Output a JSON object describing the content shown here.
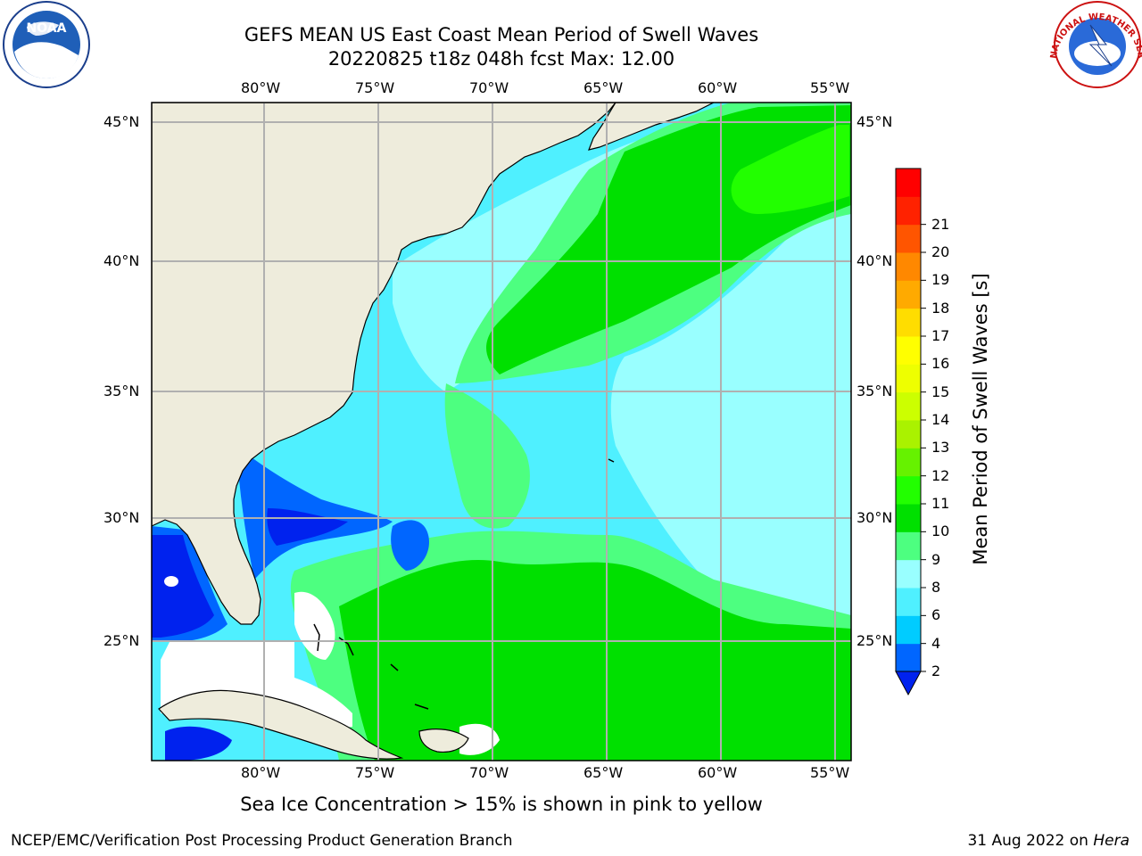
{
  "title": {
    "line1": "GEFS MEAN US East Coast Mean Period of Swell Waves",
    "line2": "20220825 t18z 048h fcst   Max: 12.00"
  },
  "map": {
    "lon_range": [
      -85,
      -54
    ],
    "lat_range": [
      20.5,
      46.2
    ],
    "lon_ticks": [
      "80°W",
      "75°W",
      "70°W",
      "65°W",
      "60°W",
      "55°W"
    ],
    "lat_ticks": [
      "45°N",
      "40°N",
      "35°N",
      "30°N",
      "25°N"
    ],
    "gridlines": true,
    "land_color": "#eeecdc",
    "grid_color": "#b0b0b0"
  },
  "colorbar": {
    "label": "Mean Period of Swell Waves [s]",
    "ticks": [
      "2",
      "4",
      "6",
      "8",
      "9",
      "10",
      "11",
      "12",
      "13",
      "14",
      "15",
      "16",
      "17",
      "18",
      "19",
      "20",
      "21"
    ],
    "colors": [
      "#0066ff",
      "#00ccff",
      "#4ff0ff",
      "#99ffff",
      "#4dff80",
      "#00e000",
      "#22ff00",
      "#66f200",
      "#aaf200",
      "#ccff00",
      "#eeff00",
      "#ffff00",
      "#ffdd00",
      "#ffaa00",
      "#ff8800",
      "#ff5500",
      "#ff2200",
      "#ff0000"
    ],
    "under_color": "#0022ee"
  },
  "caption": "Sea Ice Concentration > 15% is shown in pink to yellow",
  "footer": {
    "left": "NCEP/EMC/Verification Post Processing Product Generation Branch",
    "date": "31 Aug 2022 on ",
    "machine": "Hera"
  },
  "logos": {
    "noaa": "NOAA",
    "nws": "NATIONAL WEATHER SERVICE"
  }
}
